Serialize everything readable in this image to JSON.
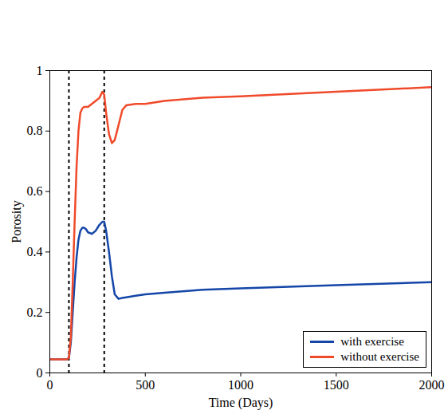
{
  "chart_data": {
    "type": "line",
    "x_label": "Time (Days)",
    "y_label": "Porosity",
    "x": [
      0,
      90,
      100,
      110,
      120,
      130,
      140,
      150,
      160,
      170,
      180,
      190,
      200,
      220,
      240,
      260,
      275,
      285,
      295,
      310,
      325,
      340,
      360,
      380,
      400,
      450,
      500,
      600,
      800,
      1000,
      1500,
      2000
    ],
    "series": [
      {
        "name": "with exercise",
        "color": "#1446a8",
        "values": [
          0.045,
          0.045,
          0.05,
          0.1,
          0.2,
          0.3,
          0.38,
          0.44,
          0.47,
          0.48,
          0.48,
          0.475,
          0.465,
          0.46,
          0.47,
          0.49,
          0.5,
          0.5,
          0.47,
          0.4,
          0.32,
          0.26,
          0.245,
          0.248,
          0.25,
          0.255,
          0.26,
          0.265,
          0.275,
          0.28,
          0.29,
          0.3
        ]
      },
      {
        "name": "without exercise",
        "color": "#f04a2a",
        "values": [
          0.045,
          0.045,
          0.05,
          0.12,
          0.3,
          0.5,
          0.68,
          0.8,
          0.86,
          0.875,
          0.88,
          0.88,
          0.88,
          0.89,
          0.9,
          0.91,
          0.93,
          0.92,
          0.86,
          0.79,
          0.76,
          0.77,
          0.82,
          0.87,
          0.885,
          0.89,
          0.89,
          0.9,
          0.91,
          0.915,
          0.93,
          0.945
        ]
      }
    ],
    "vlines": [
      100,
      285
    ],
    "xlim": [
      0,
      2000
    ],
    "xticks": [
      0,
      500,
      1000,
      1500,
      2000
    ],
    "ylim": [
      0,
      1
    ],
    "yticks": [
      0,
      0.2,
      0.4,
      0.6,
      0.8,
      1
    ],
    "grid": false,
    "legend": "lower right"
  }
}
